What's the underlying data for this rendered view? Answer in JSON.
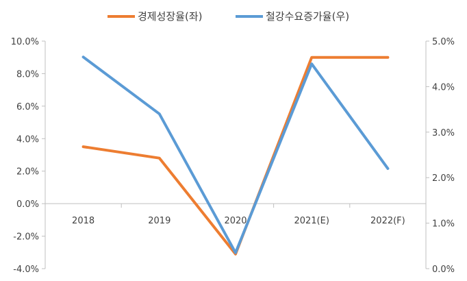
{
  "chart_data": {
    "type": "line",
    "categories": [
      "2018",
      "2019",
      "2020",
      "2021(E)",
      "2022(F)"
    ],
    "series": [
      {
        "name": "경제성장율(좌)",
        "axis": "left",
        "color": "#ED7D31",
        "values": [
          3.5,
          2.8,
          -3.1,
          9.0,
          9.0
        ]
      },
      {
        "name": "철강수요증가율(우)",
        "axis": "right",
        "color": "#5B9BD5",
        "values": [
          4.65,
          3.4,
          0.35,
          4.5,
          2.2
        ]
      }
    ],
    "y_left": {
      "min": -4.0,
      "max": 10.0,
      "step": 2.0,
      "tick_labels": [
        "-4.0%",
        "-2.0%",
        "0.0%",
        "2.0%",
        "4.0%",
        "6.0%",
        "8.0%",
        "10.0%"
      ]
    },
    "y_right": {
      "min": 0.0,
      "max": 5.0,
      "step": 1.0,
      "tick_labels": [
        "0.0%",
        "1.0%",
        "2.0%",
        "3.0%",
        "4.0%",
        "5.0%"
      ]
    },
    "legend_position": "top-center",
    "grid": false
  }
}
